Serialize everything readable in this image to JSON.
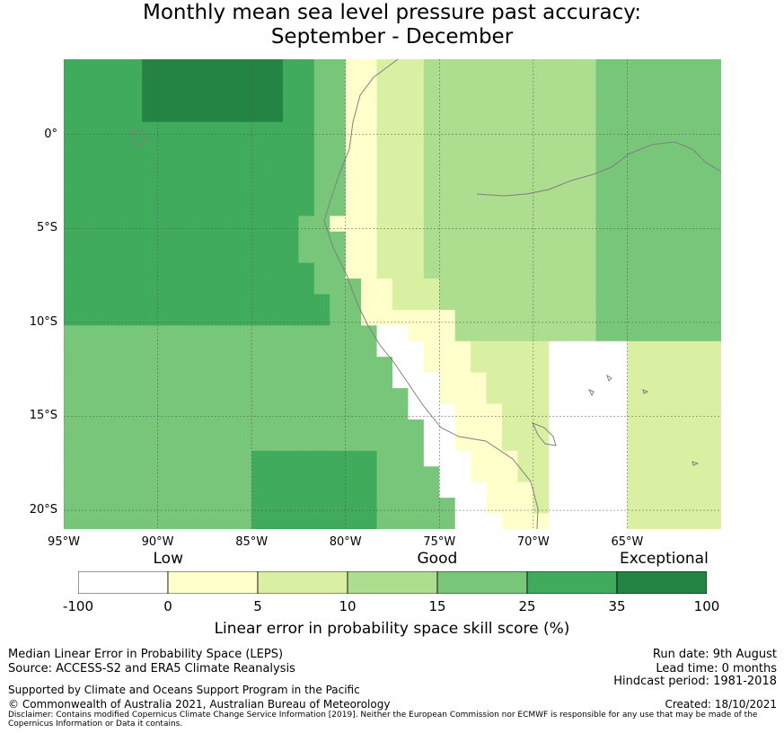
{
  "header": {
    "title_line1": "Monthly mean sea level pressure past accuracy:",
    "title_line2": "September - December"
  },
  "map": {
    "lon_range": [
      -95,
      -60
    ],
    "lat_range": [
      -21,
      4
    ],
    "cell_deg": 0.8333,
    "lat_labels": [
      {
        "lat": 0,
        "label": "0°"
      },
      {
        "lat": -5,
        "label": "5°S"
      },
      {
        "lat": -10,
        "label": "10°S"
      },
      {
        "lat": -15,
        "label": "15°S"
      },
      {
        "lat": -20,
        "label": "20°S"
      }
    ],
    "lon_labels": [
      {
        "lon": -95,
        "label": "95°W"
      },
      {
        "lon": -90,
        "label": "90°W"
      },
      {
        "lon": -85,
        "label": "85°W"
      },
      {
        "lon": -80,
        "label": "80°W"
      },
      {
        "lon": -75,
        "label": "75°W"
      },
      {
        "lon": -70,
        "label": "70°W"
      },
      {
        "lon": -65,
        "label": "65°W"
      }
    ],
    "grid": true,
    "coastline_color": "#808080"
  },
  "colorbar": {
    "category_labels": [
      {
        "label": "Low",
        "value": 0
      },
      {
        "label": "Good",
        "value": 15
      },
      {
        "label": "Exceptional",
        "value": 100
      }
    ],
    "bins": [
      {
        "from": -100,
        "to": 0,
        "color": "#ffffff"
      },
      {
        "from": 0,
        "to": 5,
        "color": "#ffffcc"
      },
      {
        "from": 5,
        "to": 10,
        "color": "#d9f0a3"
      },
      {
        "from": 10,
        "to": 15,
        "color": "#addd8e"
      },
      {
        "from": 15,
        "to": 25,
        "color": "#78c679"
      },
      {
        "from": 25,
        "to": 35,
        "color": "#41ab5d"
      },
      {
        "from": 35,
        "to": 100,
        "color": "#238443"
      }
    ],
    "ticks": [
      "-100",
      "0",
      "5",
      "10",
      "15",
      "25",
      "35",
      "100"
    ],
    "axis_label": "Linear error in probability space skill score (%)"
  },
  "footer": {
    "left_line1": "Median Linear Error in Probability Space (LEPS)",
    "left_line2": "Source: ACCESS-S2 and ERA5 Climate Reanalysis",
    "left_line3": "Supported by Climate and Oceans Support Program in the Pacific",
    "left_line4": "© Commonwealth of Australia 2021, Australian Bureau of Meteorology",
    "right_line1": "Run date: 9th August",
    "right_line2": "Lead time: 0 months",
    "right_line3": "Hindcast period: 1981-2018",
    "right_line4": "Created: 18/10/2021",
    "disclaimer": "Disclaimer: Contains modified Copernicus Climate Change Service Information [2019]. Neither the European Commission nor ECMWF is responsible for any use that may be made of the Copernicus Information or Data it contains."
  }
}
